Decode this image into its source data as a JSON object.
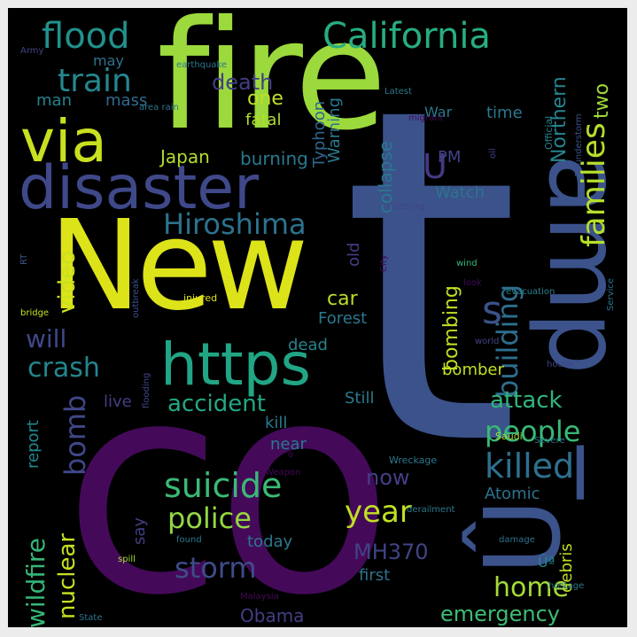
{
  "words": {
    "t": "t",
    "co": "co",
    "new": "New",
    "fire": "fire",
    "amp": "amp",
    "u_big": "Û_",
    "disaster": "disaster",
    "via": "via",
    "https": "https",
    "california": "California",
    "flood": "flood",
    "families": "families",
    "hiroshima": "Hiroshima",
    "train": "train",
    "building": "building",
    "s": "s",
    "u": "U",
    "killed": "killed",
    "people": "people",
    "suicide": "suicide",
    "police": "police",
    "storm": "storm",
    "year": "year",
    "home": "home",
    "emergency": "emergency",
    "crash": "crash",
    "will": "will",
    "accident": "accident",
    "attack": "attack",
    "bomb": "bomb",
    "wildfire": "wildfire",
    "nuclear": "nuclear",
    "video": "video",
    "death": "death",
    "one": "one",
    "two": "two",
    "northern": "Northern",
    "japan": "Japan",
    "bombing": "bombing",
    "mh370": "MH370",
    "man": "man",
    "mass": "mass",
    "fatal": "fatal",
    "typhoon": "Typhoon",
    "warning": "Warning",
    "war": "War",
    "burning": "burning",
    "collapse": "collapse",
    "pm": "PM",
    "watch": "Watch",
    "old": "old",
    "car": "car",
    "forest": "Forest",
    "dead": "dead",
    "bomber": "bomber",
    "live": "live",
    "still": "Still",
    "kill": "kill",
    "near": "near",
    "report": "report",
    "now": "now",
    "atomic": "Atomic",
    "say": "say",
    "today": "today",
    "obama": "Obama",
    "first": "first",
    "debris": "debris",
    "time": "time",
    "may": "may",
    "u_small": "Ûª",
    "army": "Army",
    "earthquake": "earthquake",
    "latest": "Latest",
    "area_rain": "area rain",
    "migrant": "migrant",
    "official": "Official",
    "thunderstorm": "Thunderstorm",
    "oil": "oil",
    "missing": "missing",
    "rt": "RT",
    "city": "City",
    "wind": "wind",
    "look": "look",
    "evacuation": "evacuation",
    "service": "Service",
    "world": "world",
    "house": "house",
    "injured": "injured",
    "outbreak": "outbreak",
    "bridge": "bridge",
    "flooding": "flooding",
    "saudi": "Saudi",
    "severe": "Severe",
    "wreckage": "Wreckage",
    "weapon": "Weapon",
    "terrorist": "Terrorist",
    "derailment": "derailment",
    "found": "found",
    "damage": "damage",
    "spill": "spill",
    "hostage": "hostage",
    "malaysia": "Malaysia",
    "state": "State",
    "o": "o"
  }
}
